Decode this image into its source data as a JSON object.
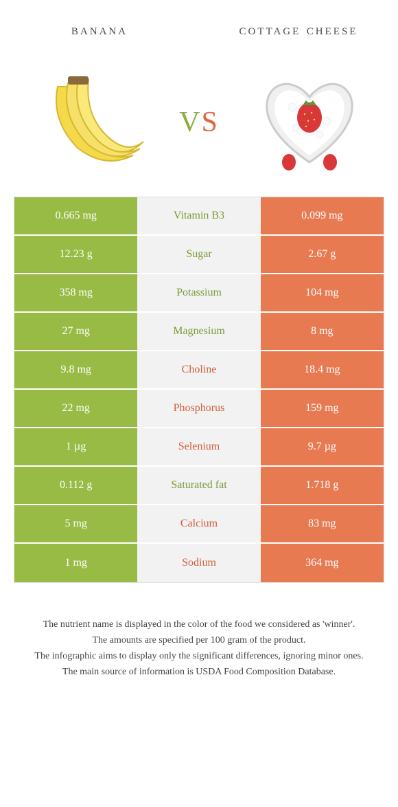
{
  "header": {
    "left_title": "banana",
    "right_title": "cottage cheese",
    "vs_v": "v",
    "vs_s": "s"
  },
  "colors": {
    "left_bg": "#97bb45",
    "right_bg": "#e87a52",
    "mid_bg": "#f2f2f2",
    "left_text_winner": "#7a9a36",
    "right_text_winner": "#d15f38",
    "page_bg": "#ffffff"
  },
  "rows": [
    {
      "left": "0.665 mg",
      "nutrient": "Vitamin B3",
      "right": "0.099 mg",
      "winner": "left"
    },
    {
      "left": "12.23 g",
      "nutrient": "Sugar",
      "right": "2.67 g",
      "winner": "left"
    },
    {
      "left": "358 mg",
      "nutrient": "Potassium",
      "right": "104 mg",
      "winner": "left"
    },
    {
      "left": "27 mg",
      "nutrient": "Magnesium",
      "right": "8 mg",
      "winner": "left"
    },
    {
      "left": "9.8 mg",
      "nutrient": "Choline",
      "right": "18.4 mg",
      "winner": "right"
    },
    {
      "left": "22 mg",
      "nutrient": "Phosphorus",
      "right": "159 mg",
      "winner": "right"
    },
    {
      "left": "1 µg",
      "nutrient": "Selenium",
      "right": "9.7 µg",
      "winner": "right"
    },
    {
      "left": "0.112 g",
      "nutrient": "Saturated fat",
      "right": "1.718 g",
      "winner": "left"
    },
    {
      "left": "5 mg",
      "nutrient": "Calcium",
      "right": "83 mg",
      "winner": "right"
    },
    {
      "left": "1 mg",
      "nutrient": "Sodium",
      "right": "364 mg",
      "winner": "right"
    }
  ],
  "footer": {
    "line1": "The nutrient name is displayed in the color of the food we considered as 'winner'.",
    "line2": "The amounts are specified per 100 gram of the product.",
    "line3": "The infographic aims to display only the significant differences, ignoring minor ones.",
    "line4": "The main source of information is USDA Food Composition Database."
  }
}
